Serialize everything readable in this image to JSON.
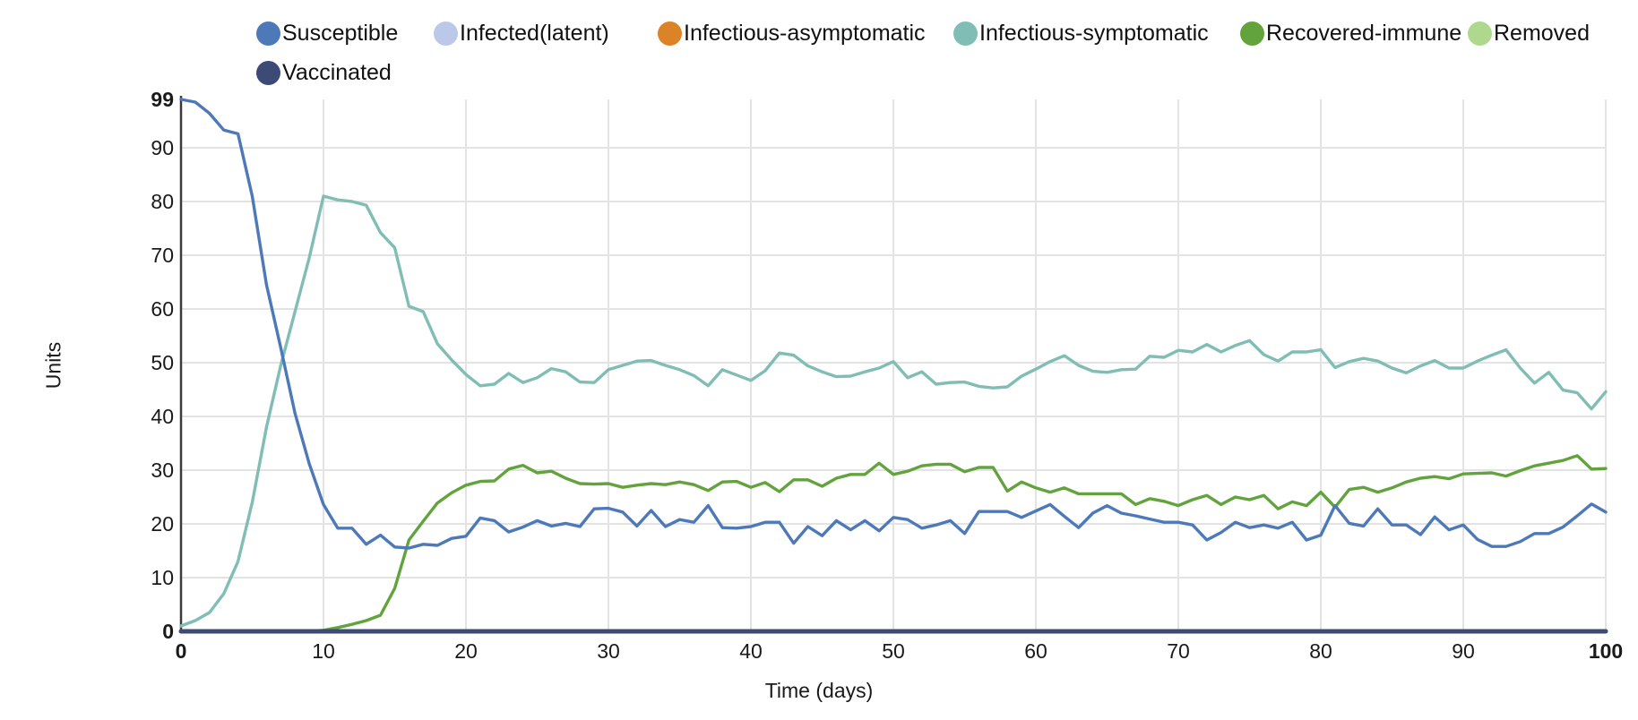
{
  "figure": {
    "background": "#ffffff",
    "y_axis_title": "Units",
    "x_axis_title": "Time (days)",
    "grid_color": "#e3e3e3",
    "axis_color": "#3a3a3a",
    "text_color": "#111111",
    "y_ticks": [
      {
        "value": 99,
        "label": "99",
        "bold": true
      },
      {
        "value": 90,
        "label": "90",
        "bold": false
      },
      {
        "value": 80,
        "label": "80",
        "bold": false
      },
      {
        "value": 70,
        "label": "70",
        "bold": false
      },
      {
        "value": 60,
        "label": "60",
        "bold": false
      },
      {
        "value": 50,
        "label": "50",
        "bold": false
      },
      {
        "value": 40,
        "label": "40",
        "bold": false
      },
      {
        "value": 30,
        "label": "30",
        "bold": false
      },
      {
        "value": 20,
        "label": "20",
        "bold": false
      },
      {
        "value": 10,
        "label": "10",
        "bold": false
      },
      {
        "value": 0,
        "label": "0",
        "bold": true
      }
    ],
    "x_ticks": [
      {
        "value": 0,
        "label": "0",
        "bold": true
      },
      {
        "value": 10,
        "label": "10",
        "bold": false
      },
      {
        "value": 20,
        "label": "20",
        "bold": false
      },
      {
        "value": 30,
        "label": "30",
        "bold": false
      },
      {
        "value": 40,
        "label": "40",
        "bold": false
      },
      {
        "value": 50,
        "label": "50",
        "bold": false
      },
      {
        "value": 60,
        "label": "60",
        "bold": false
      },
      {
        "value": 70,
        "label": "70",
        "bold": false
      },
      {
        "value": 80,
        "label": "80",
        "bold": false
      },
      {
        "value": 90,
        "label": "90",
        "bold": false
      },
      {
        "value": 100,
        "label": "100",
        "bold": true
      }
    ]
  },
  "legend": {
    "items": [
      {
        "label": "Susceptible",
        "color": "#4e79b8"
      },
      {
        "label": "Infected(latent)",
        "color": "#bcc8e8"
      },
      {
        "label": "Infectious-asymptomatic",
        "color": "#dd8327"
      },
      {
        "label": "Infectious-symptomatic",
        "color": "#7fbdb5"
      },
      {
        "label": "Recovered-immune",
        "color": "#62a33e"
      },
      {
        "label": "Removed",
        "color": "#aed88d"
      },
      {
        "label": "Vaccinated",
        "color": "#3d4a75"
      }
    ]
  },
  "chart_data": {
    "type": "line",
    "title": "",
    "xlabel": "Time (days)",
    "ylabel": "Units",
    "xlim": [
      0,
      100
    ],
    "ylim": [
      0,
      99
    ],
    "grid": true,
    "legend_position": "top",
    "x": [
      0,
      1,
      2,
      3,
      4,
      5,
      6,
      7,
      8,
      9,
      10,
      11,
      12,
      13,
      14,
      15,
      16,
      17,
      18,
      19,
      20,
      21,
      22,
      23,
      24,
      25,
      26,
      27,
      28,
      29,
      30,
      31,
      32,
      33,
      34,
      35,
      36,
      37,
      38,
      39,
      40,
      41,
      42,
      43,
      44,
      45,
      46,
      47,
      48,
      49,
      50,
      51,
      52,
      53,
      54,
      55,
      56,
      57,
      58,
      59,
      60,
      61,
      62,
      63,
      64,
      65,
      66,
      67,
      68,
      69,
      70,
      71,
      72,
      73,
      74,
      75,
      76,
      77,
      78,
      79,
      80,
      81,
      82,
      83,
      84,
      85,
      86,
      87,
      88,
      89,
      90,
      91,
      92,
      93,
      94,
      95,
      96,
      97,
      98,
      99,
      100
    ],
    "series": [
      {
        "name": "Susceptible",
        "color": "#4e79b8",
        "line_width": 3.4,
        "values": [
          99,
          98.5,
          96.4,
          93.3,
          92.6,
          81,
          64.5,
          52.8,
          40.6,
          31.2,
          23.6,
          19.2,
          19.2,
          16.2,
          17.9,
          15.7,
          15.5,
          16.2,
          16,
          17.3,
          17.7,
          21.1,
          20.6,
          18.5,
          19.4,
          20.6,
          19.6,
          20.1,
          19.5,
          22.8,
          22.9,
          22.2,
          19.6,
          22.5,
          19.5,
          20.8,
          20.3,
          23.4,
          19.3,
          19.2,
          19.5,
          20.3,
          20.3,
          16.4,
          19.5,
          17.8,
          20.6,
          18.9,
          20.6,
          18.7,
          21.2,
          20.8,
          19.2,
          19.8,
          20.6,
          18.2,
          22.3,
          22.3,
          22.3,
          21.2,
          22.4,
          23.6,
          21.4,
          19.3,
          22,
          23.4,
          22,
          21.5,
          20.9,
          20.3,
          20.3,
          19.8,
          17,
          18.4,
          20.3,
          19.3,
          19.8,
          19.2,
          20.3,
          17,
          17.9,
          23.4,
          20.1,
          19.6,
          22.8,
          19.8,
          19.8,
          18,
          21.3,
          18.9,
          19.8,
          17.1,
          15.8,
          15.8,
          16.7,
          18.2,
          18.2,
          19.4,
          21.5,
          23.7,
          22.2
        ]
      },
      {
        "name": "Infected(latent)",
        "color": "#bcc8e8",
        "line_width": 3.4,
        "constant": 0,
        "values": []
      },
      {
        "name": "Infectious-asymptomatic",
        "color": "#dd8327",
        "line_width": 3.4,
        "constant": 0,
        "values": []
      },
      {
        "name": "Infectious-symptomatic",
        "color": "#7fbdb5",
        "line_width": 3.4,
        "values": [
          1,
          2,
          3.5,
          7,
          13,
          24,
          38,
          49.5,
          59.5,
          69.5,
          81,
          80.3,
          80,
          79.3,
          74.2,
          71.4,
          60.5,
          59.5,
          53.5,
          50.5,
          47.8,
          45.7,
          46,
          48,
          46.3,
          47.2,
          48.9,
          48.3,
          46.4,
          46.3,
          48.7,
          49.5,
          50.3,
          50.4,
          49.5,
          48.7,
          47.6,
          45.7,
          48.7,
          47.7,
          46.7,
          48.5,
          51.8,
          51.4,
          49.4,
          48.3,
          47.4,
          47.5,
          48.3,
          49,
          50.2,
          47.2,
          48.3,
          46,
          46.3,
          46.4,
          45.6,
          45.3,
          45.5,
          47.5,
          48.8,
          50.2,
          51.3,
          49.5,
          48.4,
          48.2,
          48.7,
          48.8,
          51.2,
          51,
          52.3,
          52,
          53.4,
          52,
          53.2,
          54.1,
          51.5,
          50.3,
          52,
          52,
          52.4,
          49.1,
          50.2,
          50.8,
          50.3,
          49,
          48.1,
          49.4,
          50.4,
          49,
          49,
          50.3,
          51.4,
          52.4,
          49,
          46.2,
          48.2,
          44.9,
          44.4,
          41.4,
          44.6
        ]
      },
      {
        "name": "Recovered-immune",
        "color": "#62a33e",
        "line_width": 3.4,
        "values": [
          0,
          0,
          0,
          0,
          0,
          0,
          0,
          0,
          0,
          0,
          0.2,
          0.7,
          1.3,
          2,
          3,
          8,
          17,
          20.5,
          23.9,
          25.8,
          27.2,
          27.9,
          28,
          30.2,
          30.9,
          29.5,
          29.8,
          28.5,
          27.5,
          27.4,
          27.5,
          26.8,
          27.2,
          27.5,
          27.3,
          27.8,
          27.3,
          26.2,
          27.8,
          27.9,
          26.8,
          27.7,
          26,
          28.2,
          28.2,
          27,
          28.5,
          29.2,
          29.2,
          31.3,
          29.2,
          29.8,
          30.8,
          31.1,
          31.1,
          29.7,
          30.5,
          30.5,
          26.1,
          27.8,
          26.7,
          25.9,
          26.7,
          25.6,
          25.6,
          25.6,
          25.6,
          23.6,
          24.7,
          24.2,
          23.4,
          24.5,
          25.3,
          23.6,
          25,
          24.5,
          25.3,
          22.8,
          24.1,
          23.4,
          25.9,
          23.1,
          26.4,
          26.8,
          25.9,
          26.7,
          27.8,
          28.5,
          28.8,
          28.4,
          29.3,
          29.4,
          29.5,
          28.9,
          29.9,
          30.8,
          31.3,
          31.8,
          32.7,
          30.2,
          30.3
        ]
      },
      {
        "name": "Removed",
        "color": "#aed88d",
        "line_width": 3.4,
        "constant": 0,
        "values": []
      },
      {
        "name": "Vaccinated",
        "color": "#3d4a75",
        "line_width": 5,
        "constant": 0,
        "values": []
      }
    ]
  }
}
